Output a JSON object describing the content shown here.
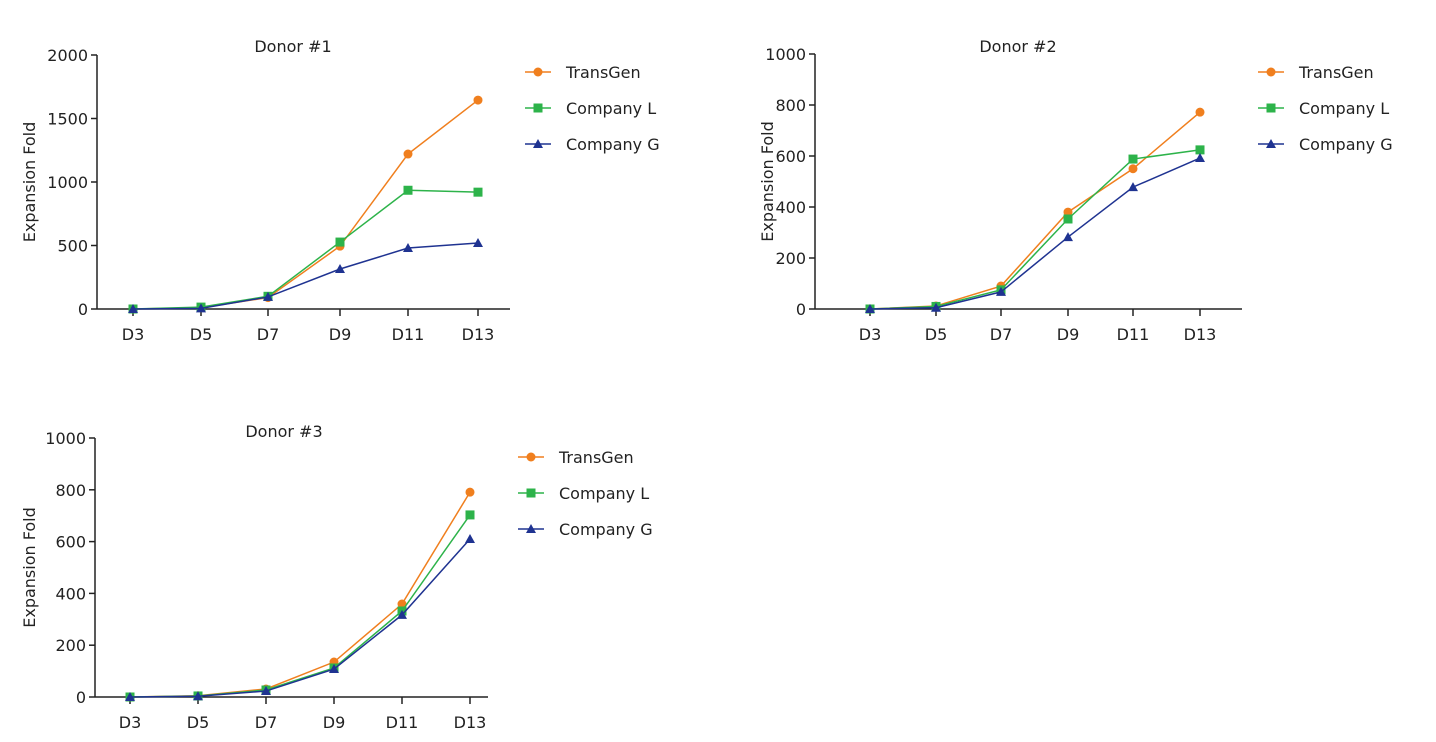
{
  "chart_data": [
    {
      "type": "line",
      "title": "Donor #1",
      "xlabel": "",
      "ylabel": "Expansion Fold",
      "categories": [
        "D3",
        "D5",
        "D7",
        "D9",
        "D11",
        "D13"
      ],
      "ylim": [
        0,
        2000
      ],
      "yticks": [
        0,
        500,
        1000,
        1500,
        2000
      ],
      "grid": false,
      "legend": "right",
      "series": [
        {
          "name": "TransGen",
          "marker": "circle",
          "color": "#f07f1e",
          "values": [
            0,
            10,
            90,
            495,
            1220,
            1645
          ]
        },
        {
          "name": "Company L",
          "marker": "square",
          "color": "#2db34a",
          "values": [
            0,
            15,
            100,
            527,
            935,
            920
          ]
        },
        {
          "name": "Company G",
          "marker": "triangle",
          "color": "#1f3391",
          "values": [
            0,
            5,
            95,
            315,
            480,
            520
          ]
        }
      ]
    },
    {
      "type": "line",
      "title": "Donor #2",
      "xlabel": "",
      "ylabel": "Expansion Fold",
      "categories": [
        "D3",
        "D5",
        "D7",
        "D9",
        "D11",
        "D13"
      ],
      "ylim": [
        0,
        1000
      ],
      "yticks": [
        0,
        200,
        400,
        600,
        800,
        1000
      ],
      "grid": false,
      "legend": "right",
      "series": [
        {
          "name": "TransGen",
          "marker": "circle",
          "color": "#f07f1e",
          "values": [
            0,
            12,
            90,
            380,
            550,
            772
          ]
        },
        {
          "name": "Company L",
          "marker": "square",
          "color": "#2db34a",
          "values": [
            0,
            10,
            75,
            353,
            588,
            624
          ]
        },
        {
          "name": "Company G",
          "marker": "triangle",
          "color": "#1f3391",
          "values": [
            0,
            5,
            67,
            282,
            478,
            592
          ]
        }
      ]
    },
    {
      "type": "line",
      "title": "Donor #3",
      "xlabel": "",
      "ylabel": "Expansion Fold",
      "categories": [
        "D3",
        "D5",
        "D7",
        "D9",
        "D11",
        "D13"
      ],
      "ylim": [
        0,
        1000
      ],
      "yticks": [
        0,
        200,
        400,
        600,
        800,
        1000
      ],
      "grid": false,
      "legend": "right",
      "series": [
        {
          "name": "TransGen",
          "marker": "circle",
          "color": "#f07f1e",
          "values": [
            0,
            5,
            31,
            135,
            359,
            791
          ]
        },
        {
          "name": "Company L",
          "marker": "square",
          "color": "#2db34a",
          "values": [
            0,
            4,
            27,
            112,
            332,
            703
          ]
        },
        {
          "name": "Company G",
          "marker": "triangle",
          "color": "#1f3391",
          "values": [
            0,
            3,
            23,
            108,
            317,
            610
          ]
        }
      ]
    }
  ]
}
